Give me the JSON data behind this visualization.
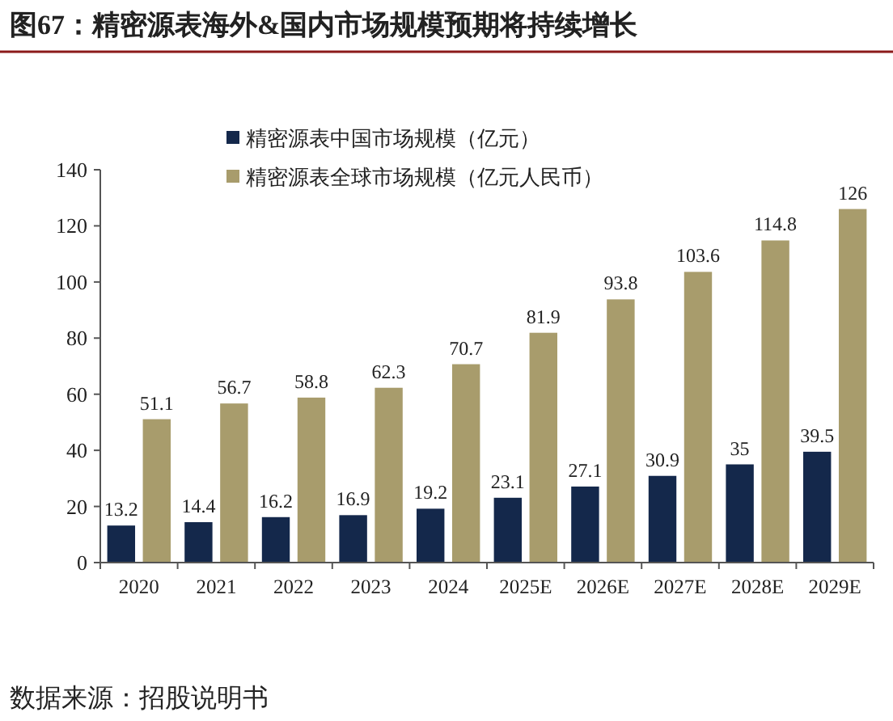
{
  "chart_data": {
    "type": "bar",
    "title": "图67：精密源表海外&国内市场规模预期将持续增长",
    "categories": [
      "2020",
      "2021",
      "2022",
      "2023",
      "2024",
      "2025E",
      "2026E",
      "2027E",
      "2028E",
      "2029E"
    ],
    "series": [
      {
        "name": "精密源表中国市场规模（亿元）",
        "color": "#14284b",
        "values": [
          13.2,
          14.4,
          16.2,
          16.9,
          19.2,
          23.1,
          27.1,
          30.9,
          35,
          39.5
        ]
      },
      {
        "name": "精密源表全球市场规模（亿元人民币）",
        "color": "#a89c6c",
        "values": [
          51.1,
          56.7,
          58.8,
          62.3,
          70.7,
          81.9,
          93.8,
          103.6,
          114.8,
          126
        ]
      }
    ],
    "ylim": [
      0,
      140
    ],
    "yticks": [
      0,
      20,
      40,
      60,
      80,
      100,
      120,
      140
    ],
    "data_labels": true,
    "legend": "top left",
    "grid": false,
    "annotations": [
      "数据来源：招股说明书"
    ]
  }
}
